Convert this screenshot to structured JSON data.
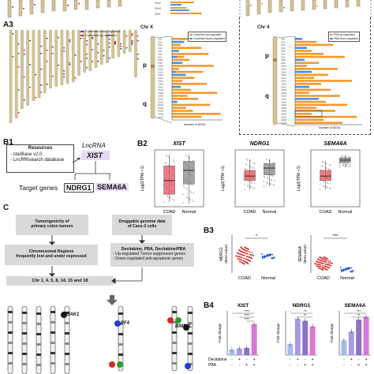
{
  "panel_labels": {
    "a3": "A3",
    "b1": "B1",
    "b2": "B2",
    "b3": "B3",
    "b4": "B4",
    "c": "C"
  },
  "a3": {
    "chrx_title": "Chr X",
    "chr4_title": "Chr 4",
    "arm_p": "p",
    "arm_q": "q",
    "legend_down": "Combined down-regulated",
    "legend_up": "Combined up-regulated",
    "legend_pba_up": "PBA up-regulated",
    "legend_pba_down": "PBA down-regulated",
    "legend_combined_up": "Combined up-regulated",
    "legend_combined_down": "Combined down-regulated",
    "xaxis": "Number of DEGs",
    "colors": {
      "orange": "#f39a2b",
      "blue": "#4a90d9",
      "purple": "#5a3d8a",
      "red": "#d32f2f",
      "chrom": "#d8c48c"
    }
  },
  "b1": {
    "lncrna_label": "LncRNA",
    "xist": "XIST",
    "resources_title": "Resources",
    "resource_1": "- starBase v2.0",
    "resource_2": "- LncRRIsearch database",
    "target_genes": "Target genes",
    "gene_1": "NDRG1",
    "gene_2": "SEMA6A"
  },
  "b2": {
    "titles": [
      "XIST",
      "NDRG1",
      "SEMA6A"
    ],
    "ylabel": "Log2(TPM +1)",
    "groups": [
      "COAD",
      "Normal"
    ]
  },
  "b3": {
    "ylabel_1": "NDRG1",
    "ylabel_1b": "(Beta value)",
    "ylabel_2": "SEMA6A",
    "ylabel_2b": "(Beta value)",
    "groups": [
      "COAD",
      "Normal"
    ],
    "sig_1": "*",
    "sig_2": "***"
  },
  "b4": {
    "titles": [
      "XIST",
      "NDRG1",
      "SEMA6A"
    ],
    "ylabel": "Fold change",
    "row_1": "Decitabine",
    "row_2": "PBA",
    "sig_xist": [
      "****",
      "****",
      "****"
    ],
    "sig_ndrg1": [
      "**",
      "**"
    ],
    "sig_sema6a": [
      "***",
      "**"
    ]
  },
  "c": {
    "box_1a": "Tumorigenicity of",
    "box_1b": "primary colon tumors",
    "box_2": "Druggable genome data",
    "box_2b": "of Caco-2 cells",
    "box_3a": "Chromosomal Regions",
    "box_3b": "frequently lost and under expressed",
    "box_4": "Decitabine, PBA, Decitabine/PBA",
    "box_4b": "- Up-regulated Tumor suppressor genes",
    "box_4c": "- Down-regulated anti-apoptosis genes",
    "box_5": "Chr 1, 4, 5, 8, 14, 15 and 18",
    "genes": [
      "JAK1",
      "PF4",
      "BNIP3L"
    ]
  },
  "chart_data": [
    {
      "type": "bar",
      "title": "XIST",
      "ylabel": "Fold change",
      "categories": [
        "-/-",
        "+/-",
        "-/+",
        "+/+"
      ],
      "values": [
        1,
        1.2,
        1.3,
        5.6
      ],
      "ylim": [
        0,
        8
      ]
    },
    {
      "type": "bar",
      "title": "NDRG1",
      "ylabel": "Fold change",
      "categories": [
        "-/-",
        "+/-",
        "-/+",
        "+/+"
      ],
      "values": [
        1,
        3.3,
        3.1,
        2.6
      ],
      "ylim": [
        0,
        4
      ]
    },
    {
      "type": "bar",
      "title": "SEMA6A",
      "ylabel": "Fold change",
      "categories": [
        "-/-",
        "+/-",
        "-/+",
        "+/+"
      ],
      "values": [
        1,
        1.6,
        2.4,
        2.6
      ],
      "ylim": [
        0,
        3
      ]
    }
  ]
}
